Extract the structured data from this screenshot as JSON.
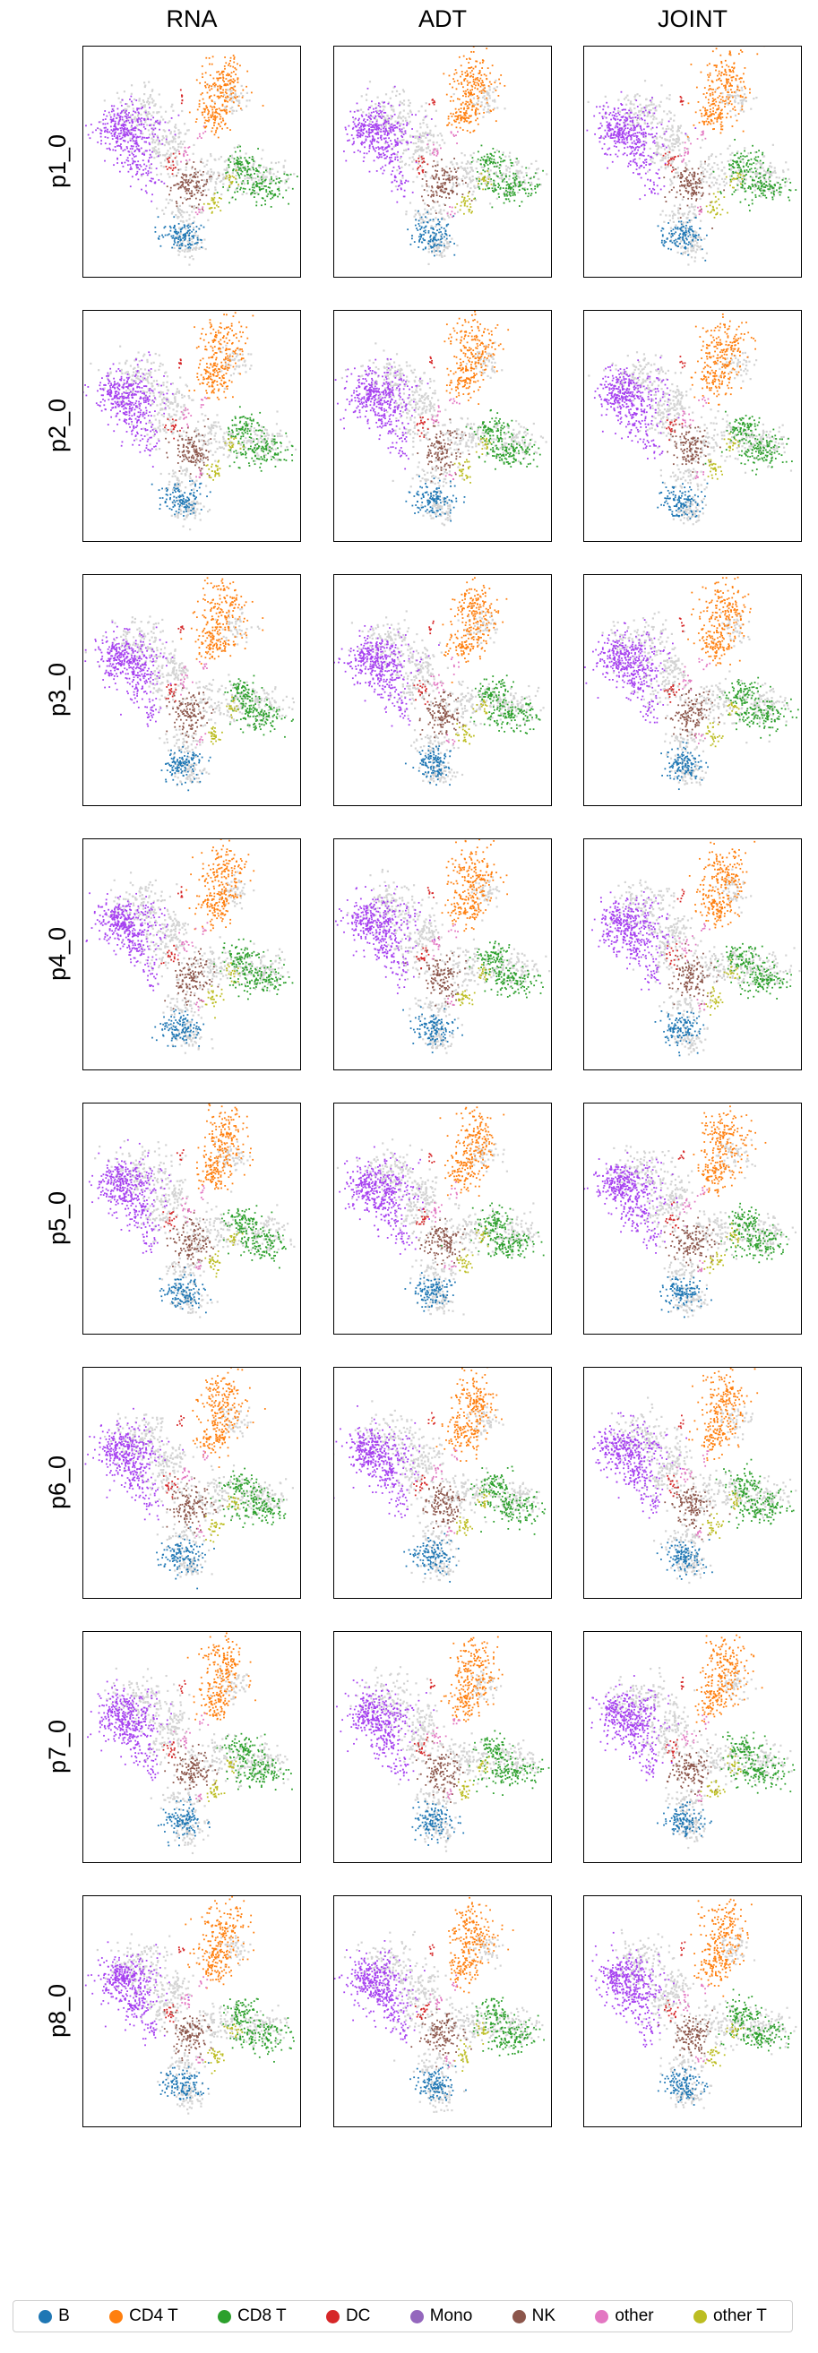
{
  "chart_data": {
    "type": "scatter",
    "columns": [
      "RNA",
      "ADT",
      "JOINT"
    ],
    "rows": [
      "p1_0",
      "p2_0",
      "p3_0",
      "p4_0",
      "p5_0",
      "p6_0",
      "p7_0",
      "p8_0"
    ],
    "background_color": "#d3d3d3",
    "grid": false,
    "axes_ticks": false,
    "legend_position": "bottom",
    "categories": [
      {
        "name": "B",
        "color": "#1f77b4"
      },
      {
        "name": "CD4 T",
        "color": "#ff7f0e"
      },
      {
        "name": "CD8 T",
        "color": "#2ca02c"
      },
      {
        "name": "DC",
        "color": "#d62728"
      },
      {
        "name": "Mono",
        "color": "#9467bd"
      },
      {
        "name": "NK",
        "color": "#8c564b"
      },
      {
        "name": "other",
        "color": "#e377c2"
      },
      {
        "name": "other T",
        "color": "#bcbd22"
      }
    ],
    "accent_colors": {
      "Mono": "#a640f0"
    }
  }
}
